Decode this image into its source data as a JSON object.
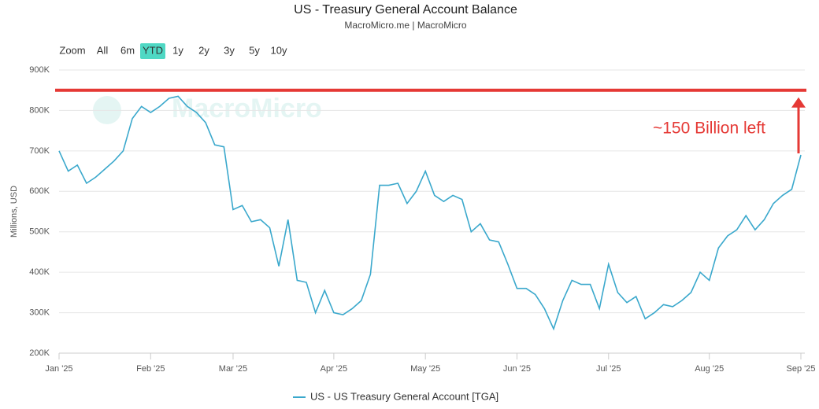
{
  "chart_data": {
    "type": "line",
    "title": "US - Treasury General Account Balance",
    "subtitle": "MacroMicro.me | MacroMicro",
    "watermark": "MacroMicro",
    "y_axis_label": "Millions, USD",
    "x": [
      "Jan '25",
      null,
      null,
      null,
      null,
      null,
      null,
      null,
      null,
      null,
      "Feb '25",
      null,
      null,
      null,
      null,
      null,
      null,
      null,
      null,
      "Mar '25",
      null,
      null,
      null,
      null,
      null,
      null,
      null,
      null,
      null,
      null,
      "Apr '25",
      null,
      null,
      null,
      null,
      null,
      null,
      null,
      null,
      null,
      "May '25",
      null,
      null,
      null,
      null,
      null,
      null,
      null,
      null,
      null,
      "Jun '25",
      null,
      null,
      null,
      null,
      null,
      null,
      null,
      null,
      null,
      "Jul '25",
      null,
      null,
      null,
      null,
      null,
      null,
      null,
      null,
      null,
      null,
      "Aug '25",
      null,
      null,
      null,
      null,
      null,
      null,
      null,
      null,
      null,
      "Sep '25"
    ],
    "series": [
      {
        "name": "US - US Treasury General Account [TGA]",
        "color": "#3aa8cc",
        "values": [
          700000,
          650000,
          665000,
          620000,
          635000,
          655000,
          675000,
          700000,
          780000,
          810000,
          795000,
          810000,
          830000,
          835000,
          810000,
          795000,
          770000,
          715000,
          710000,
          555000,
          565000,
          525000,
          530000,
          510000,
          415000,
          530000,
          380000,
          375000,
          300000,
          355000,
          300000,
          295000,
          310000,
          330000,
          395000,
          615000,
          615000,
          620000,
          570000,
          600000,
          650000,
          590000,
          575000,
          590000,
          580000,
          500000,
          520000,
          480000,
          475000,
          420000,
          360000,
          360000,
          345000,
          310000,
          260000,
          330000,
          380000,
          370000,
          370000,
          310000,
          420000,
          350000,
          325000,
          340000,
          285000,
          300000,
          320000,
          315000,
          330000,
          350000,
          400000,
          380000,
          460000,
          490000,
          505000,
          540000,
          505000,
          530000,
          570000,
          590000,
          605000,
          690000
        ]
      }
    ],
    "ylim": [
      200000,
      900000
    ],
    "yticks": [
      {
        "value": 200000,
        "label": "200K"
      },
      {
        "value": 300000,
        "label": "300K"
      },
      {
        "value": 400000,
        "label": "400K"
      },
      {
        "value": 500000,
        "label": "500K"
      },
      {
        "value": 600000,
        "label": "600K"
      },
      {
        "value": 700000,
        "label": "700K"
      },
      {
        "value": 800000,
        "label": "800K"
      },
      {
        "value": 900000,
        "label": "900K"
      }
    ],
    "grid": true,
    "reference_line": {
      "value": 850000,
      "color": "#e53935"
    },
    "annotation": "~150 Billion left",
    "legend": "bottom"
  },
  "range_selector": {
    "label": "Zoom",
    "buttons": [
      "All",
      "6m",
      "YTD",
      "1y",
      "2y",
      "3y",
      "5y",
      "10y"
    ],
    "selected": "YTD"
  }
}
